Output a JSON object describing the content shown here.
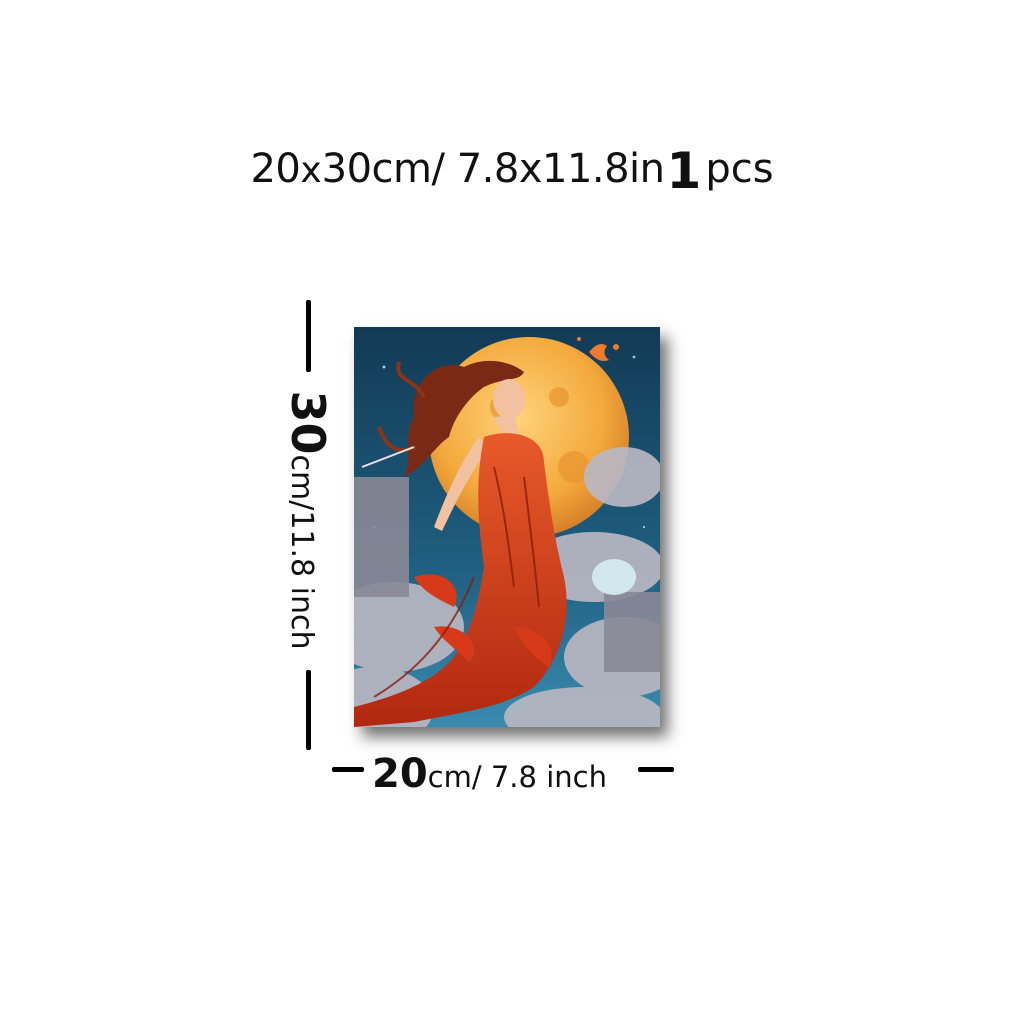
{
  "title": {
    "size_cm": "20",
    "size_x": "x",
    "size_rest": "30cm/ 7.8x11.8in",
    "count": "1",
    "unit": "pcs"
  },
  "height_label": {
    "number": "30",
    "rest": "cm/11.8 inch"
  },
  "width_label": {
    "number": "20",
    "rest": "cm/ 7.8 inch"
  },
  "artwork": {
    "palette": {
      "sky": "#1b4f6b",
      "sky_light": "#3a8bb0",
      "moon": "#f3a93c",
      "moon_light": "#ffd27a",
      "dress": "#e0451f",
      "dress_dark": "#a8240f",
      "hair": "#7a2a14",
      "skin": "#f2c2a0",
      "cloud": "#b9b7c2"
    }
  }
}
